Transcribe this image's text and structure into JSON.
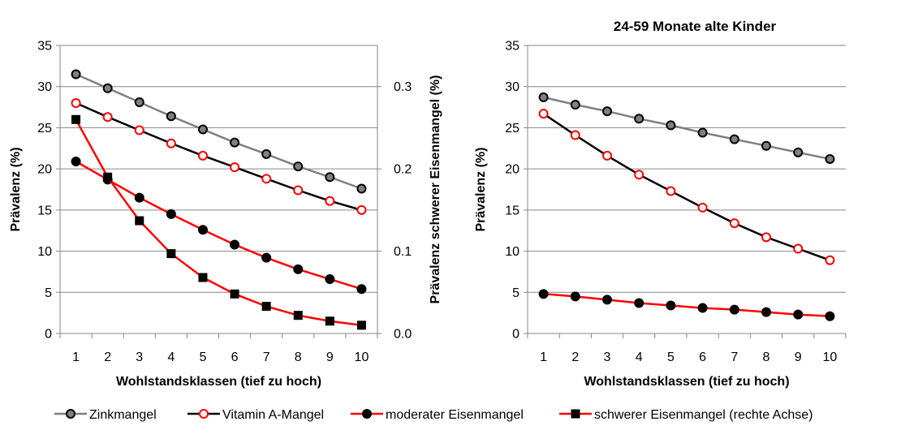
{
  "chart_data": [
    {
      "type": "line",
      "title": "",
      "xlabel": "Wohlstandsklassen  (tief zu hoch)",
      "ylabel": "Prävalenz (%)",
      "ylabel_right": "Prävalenz schwerer Eisenmangel (%)",
      "x": [
        1,
        2,
        3,
        4,
        5,
        6,
        7,
        8,
        9,
        10
      ],
      "ylim": [
        0,
        35
      ],
      "yticks": [
        "0",
        "5",
        "10",
        "15",
        "20",
        "25",
        "30",
        "35"
      ],
      "ylim_right": [
        0,
        0.35
      ],
      "yticks_right": [
        "0.0",
        "0.1",
        "0.2",
        "0.3"
      ],
      "grid": true,
      "series": [
        {
          "name": "Zinkmangel",
          "axis": "left",
          "values": [
            31.5,
            29.8,
            28.1,
            26.4,
            24.8,
            23.2,
            21.8,
            20.3,
            19.0,
            17.6
          ]
        },
        {
          "name": "Vitamin A-Mangel",
          "axis": "left",
          "values": [
            28.0,
            26.3,
            24.7,
            23.1,
            21.6,
            20.2,
            18.8,
            17.4,
            16.1,
            15.0
          ]
        },
        {
          "name": "moderater Eisenmangel",
          "axis": "left",
          "values": [
            20.9,
            18.7,
            16.5,
            14.5,
            12.6,
            10.8,
            9.2,
            7.8,
            6.6,
            5.4
          ]
        },
        {
          "name": "schwerer Eisenmangel (rechte Achse)",
          "axis": "right",
          "values": [
            0.26,
            0.19,
            0.137,
            0.097,
            0.068,
            0.048,
            0.033,
            0.022,
            0.015,
            0.01
          ]
        }
      ]
    },
    {
      "type": "line",
      "title": "24-59 Monate alte Kinder",
      "xlabel": "Wohlstandsklassen  (tief zu hoch)",
      "ylabel": "Prävalenz (%)",
      "x": [
        1,
        2,
        3,
        4,
        5,
        6,
        7,
        8,
        9,
        10
      ],
      "ylim": [
        0,
        35
      ],
      "yticks": [
        "0",
        "5",
        "10",
        "15",
        "20",
        "25",
        "30",
        "35"
      ],
      "grid": true,
      "series": [
        {
          "name": "Zinkmangel",
          "axis": "left",
          "values": [
            28.7,
            27.8,
            27.0,
            26.1,
            25.3,
            24.4,
            23.6,
            22.8,
            22.0,
            21.2
          ]
        },
        {
          "name": "Vitamin A-Mangel",
          "axis": "left",
          "values": [
            26.7,
            24.1,
            21.6,
            19.3,
            17.3,
            15.3,
            13.4,
            11.7,
            10.3,
            8.9
          ]
        },
        {
          "name": "moderater Eisenmangel",
          "axis": "left",
          "values": [
            4.8,
            4.5,
            4.1,
            3.7,
            3.4,
            3.1,
            2.9,
            2.6,
            2.3,
            2.1
          ]
        }
      ]
    }
  ],
  "legend": {
    "placement": "bottom",
    "items": [
      {
        "label": "Zinkmangel",
        "line_color": "#808080",
        "marker": "circle",
        "marker_fill": "#808080",
        "marker_stroke": "#000000"
      },
      {
        "label": "Vitamin A-Mangel",
        "line_color": "#000000",
        "marker": "circle",
        "marker_fill": "#ffffff",
        "marker_stroke": "#ff0000"
      },
      {
        "label": "moderater Eisenmangel",
        "line_color": "#ff0000",
        "marker": "circle",
        "marker_fill": "#000000",
        "marker_stroke": "#000000"
      },
      {
        "label": "schwerer Eisenmangel (rechte Achse)",
        "line_color": "#ff0000",
        "marker": "square",
        "marker_fill": "#000000",
        "marker_stroke": "#000000"
      }
    ]
  }
}
